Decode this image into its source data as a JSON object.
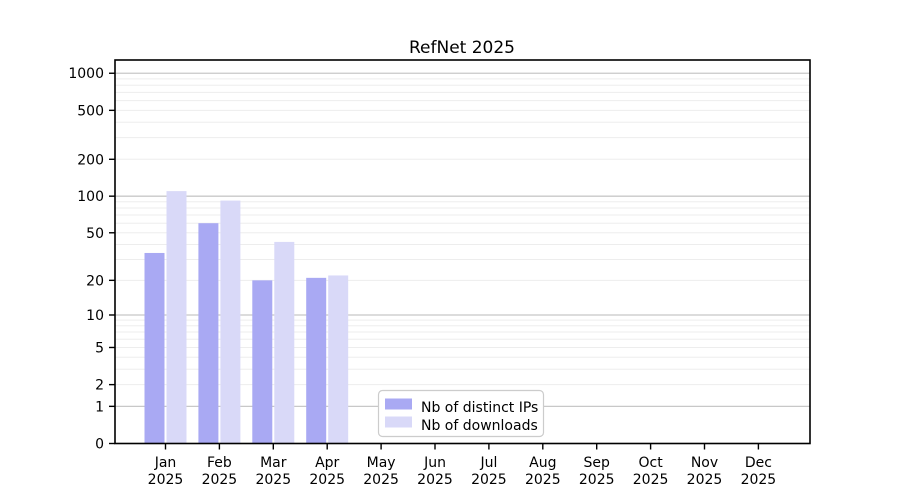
{
  "title": "RefNet 2025",
  "chart_data": {
    "type": "bar",
    "title": "RefNet 2025",
    "categories": [
      "Jan 2025",
      "Feb 2025",
      "Mar 2025",
      "Apr 2025",
      "May 2025",
      "Jun 2025",
      "Jul 2025",
      "Aug 2025",
      "Sep 2025",
      "Oct 2025",
      "Nov 2025",
      "Dec 2025"
    ],
    "series": [
      {
        "name": "Nb of distinct IPs",
        "color": "#a9a9f3",
        "values": [
          34,
          60,
          20,
          21,
          0,
          0,
          0,
          0,
          0,
          0,
          0,
          0
        ]
      },
      {
        "name": "Nb of downloads",
        "color": "#d9d9f8",
        "values": [
          110,
          92,
          42,
          22,
          0,
          0,
          0,
          0,
          0,
          0,
          0,
          0
        ]
      }
    ],
    "xlabel": "",
    "ylabel": "",
    "yscale": "log1p",
    "yticks": [
      0,
      1,
      2,
      5,
      10,
      20,
      50,
      100,
      200,
      500,
      1000
    ],
    "major_gridline_values": [
      1,
      10,
      100,
      1000
    ],
    "ylim": [
      0,
      1270
    ],
    "grid": true,
    "legend_position": "lower center"
  },
  "colors": {
    "background": "#ffffff",
    "spine": "#000000",
    "major_grid": "#c8c8c8",
    "minor_grid": "#ededed",
    "legend_border": "#cccccc",
    "legend_background": "#ffffff",
    "text": "#000000"
  }
}
